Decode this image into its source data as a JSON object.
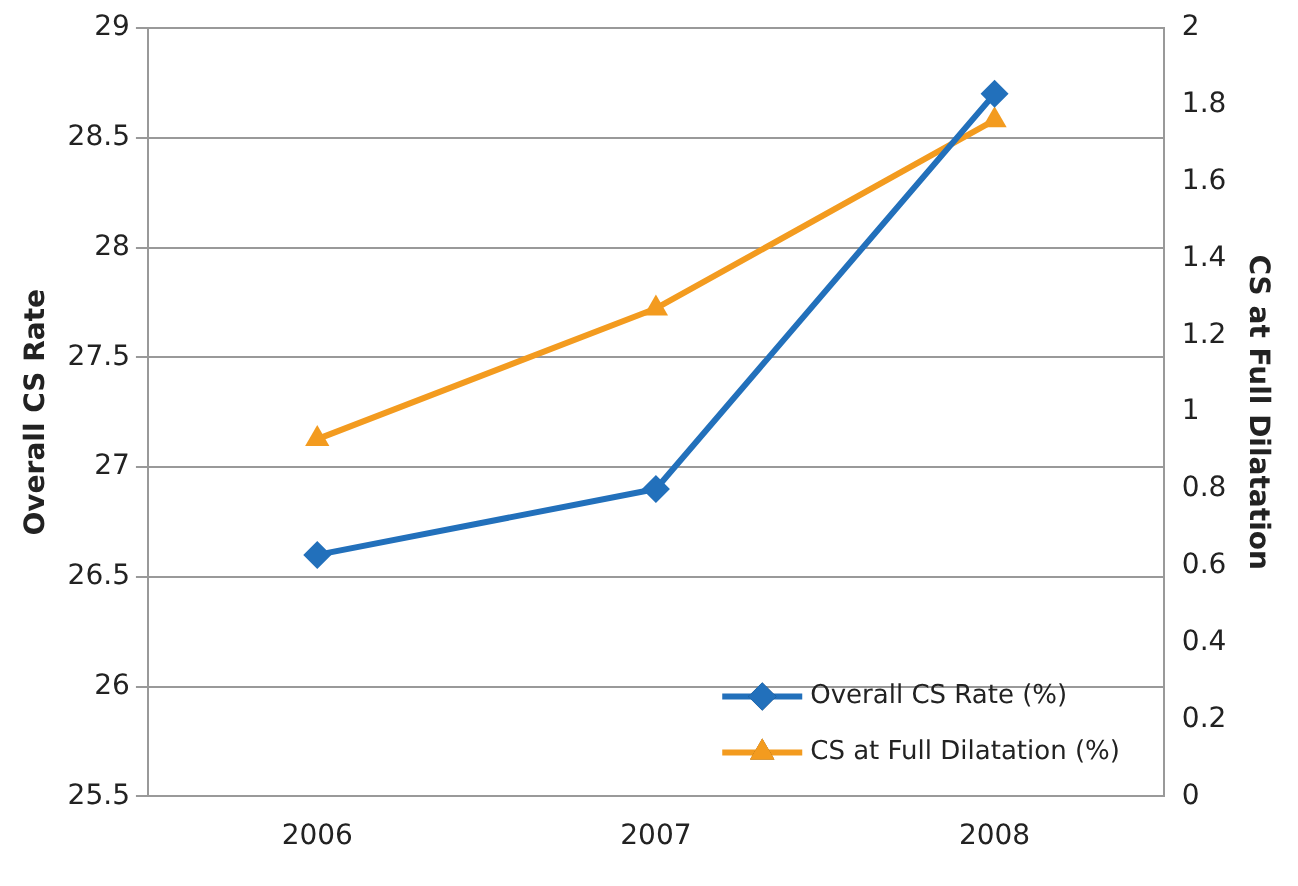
{
  "chart_data": {
    "type": "line",
    "ylabel": "Overall CS Rate",
    "y2label": "CS at Full Dilatation",
    "categories": [
      "2006",
      "2007",
      "2008"
    ],
    "series": [
      {
        "name": "Overall CS Rate (%)",
        "color": "#2270bb",
        "values": [
          26.6,
          26.9,
          28.7
        ],
        "marker": "diamond"
      },
      {
        "name": "CS at Full Dilatation (%)",
        "color": "#f39b1f",
        "values": [
          0.93,
          1.27,
          1.76
        ],
        "marker": "triangle",
        "axis": "y2"
      }
    ],
    "ylim": [
      25.5,
      29
    ],
    "yticks": [
      25.5,
      26,
      26.5,
      27,
      27.5,
      28,
      28.5,
      29
    ],
    "y2lim": [
      0,
      2
    ],
    "y2ticks": [
      0,
      0.2,
      0.4,
      0.6,
      0.8,
      1,
      1.2,
      1.4,
      1.6,
      1.8,
      2
    ],
    "grid": "y",
    "legend": "bottom right"
  }
}
